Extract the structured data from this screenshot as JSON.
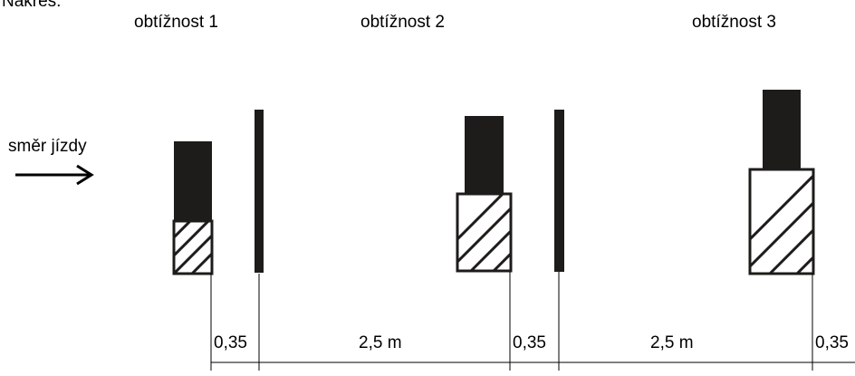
{
  "heading": "Nákres:",
  "difficulty_labels": [
    "obtížnost 1",
    "obtížnost 2",
    "obtížnost 3"
  ],
  "direction_label": "směr jízdy",
  "dimension_labels": [
    "0,35",
    "2,5 m",
    "0,35",
    "2,5 m",
    "0,35"
  ],
  "colors": {
    "ink": "#1e1c1a",
    "line": "#000000",
    "background": "#ffffff"
  }
}
